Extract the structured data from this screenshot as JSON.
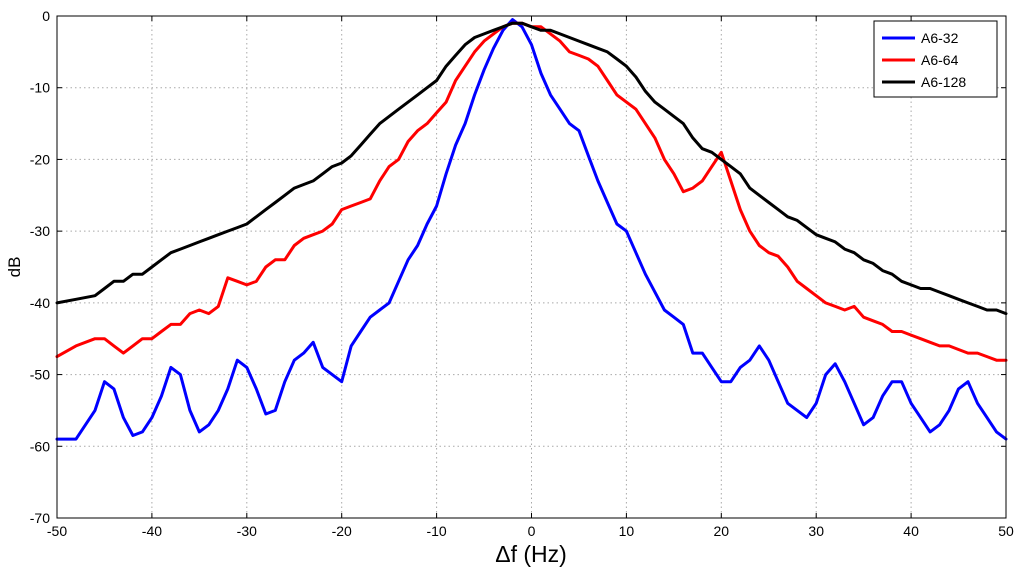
{
  "chart_data": {
    "type": "line",
    "xlabel": "Δf (Hz)",
    "ylabel": "dB",
    "xlim": [
      -50,
      50
    ],
    "ylim": [
      -70,
      0
    ],
    "xticks": [
      -50,
      -40,
      -30,
      -20,
      -10,
      0,
      10,
      20,
      30,
      40,
      50
    ],
    "yticks": [
      0,
      -10,
      -20,
      -30,
      -40,
      -50,
      -60,
      -70
    ],
    "grid": true,
    "legend_position": "top-right",
    "series": [
      {
        "name": "A6-32",
        "color": "#0000ff",
        "x": [
          -50,
          -48,
          -46,
          -45,
          -44,
          -43,
          -42,
          -41,
          -40,
          -39,
          -38,
          -37,
          -36,
          -35,
          -34,
          -33,
          -32,
          -31,
          -30,
          -29,
          -28,
          -27,
          -26,
          -25,
          -24,
          -23,
          -22,
          -21,
          -20,
          -19,
          -18,
          -17,
          -16,
          -15,
          -14,
          -13,
          -12,
          -11,
          -10,
          -9,
          -8,
          -7,
          -6,
          -5,
          -4,
          -3,
          -2,
          -1,
          0,
          1,
          2,
          3,
          4,
          5,
          6,
          7,
          8,
          9,
          10,
          11,
          12,
          13,
          14,
          15,
          16,
          17,
          18,
          19,
          20,
          21,
          22,
          23,
          24,
          25,
          26,
          27,
          28,
          29,
          30,
          31,
          32,
          33,
          34,
          35,
          36,
          37,
          38,
          39,
          40,
          41,
          42,
          43,
          44,
          45,
          46,
          47,
          48,
          49,
          50
        ],
        "y": [
          -59,
          -59,
          -55,
          -51,
          -52,
          -56,
          -58.5,
          -58,
          -56,
          -53,
          -49,
          -50,
          -55,
          -58,
          -57,
          -55,
          -52,
          -48,
          -49,
          -52,
          -55.5,
          -55,
          -51,
          -48,
          -47,
          -45.5,
          -49,
          -50,
          -51,
          -46,
          -44,
          -42,
          -41,
          -40,
          -37,
          -34,
          -32,
          -29,
          -26.5,
          -22,
          -18,
          -15,
          -11,
          -7.5,
          -4.5,
          -2,
          -0.5,
          -1.5,
          -4,
          -8,
          -11,
          -13,
          -15,
          -16,
          -19.5,
          -23,
          -26,
          -29,
          -30,
          -33,
          -36,
          -38.5,
          -41,
          -42,
          -43,
          -47,
          -47,
          -49,
          -51,
          -51,
          -49,
          -48,
          -46,
          -48,
          -51,
          -54,
          -55,
          -56,
          -54,
          -50,
          -48.5,
          -51,
          -54,
          -57,
          -56,
          -53,
          -51,
          -51,
          -54,
          -56,
          -58,
          -57,
          -55,
          -52,
          -51,
          -54,
          -56,
          -58,
          -59
        ]
      },
      {
        "name": "A6-64",
        "color": "#ff0000",
        "x": [
          -50,
          -48,
          -46,
          -45,
          -44,
          -43,
          -42,
          -41,
          -40,
          -39,
          -38,
          -37,
          -36,
          -35,
          -34,
          -33,
          -32,
          -31,
          -30,
          -29,
          -28,
          -27,
          -26,
          -25,
          -24,
          -23,
          -22,
          -21,
          -20,
          -19,
          -18,
          -17,
          -16,
          -15,
          -14,
          -13,
          -12,
          -11,
          -10,
          -9,
          -8,
          -7,
          -6,
          -5,
          -4,
          -3,
          -2,
          -1,
          0,
          1,
          2,
          3,
          4,
          5,
          6,
          7,
          8,
          9,
          10,
          11,
          12,
          13,
          14,
          15,
          16,
          17,
          18,
          19,
          20,
          21,
          22,
          23,
          24,
          25,
          26,
          27,
          28,
          29,
          30,
          31,
          32,
          33,
          34,
          35,
          36,
          37,
          38,
          39,
          40,
          41,
          42,
          43,
          44,
          45,
          46,
          47,
          48,
          49,
          50
        ],
        "y": [
          -47.5,
          -46,
          -45,
          -45,
          -46,
          -47,
          -46,
          -45,
          -45,
          -44,
          -43,
          -43,
          -41.5,
          -41,
          -41.5,
          -40.5,
          -36.5,
          -37,
          -37.5,
          -37,
          -35,
          -34,
          -34,
          -32,
          -31,
          -30.5,
          -30,
          -29,
          -27,
          -26.5,
          -26,
          -25.5,
          -23,
          -21,
          -20,
          -17.5,
          -16,
          -15,
          -13.5,
          -12,
          -9,
          -7,
          -5,
          -3.5,
          -2.5,
          -1.5,
          -1,
          -1,
          -1.5,
          -1.5,
          -2.5,
          -3.5,
          -5,
          -5.5,
          -6,
          -7,
          -9,
          -11,
          -12,
          -13,
          -15,
          -17,
          -20,
          -22,
          -24.5,
          -24,
          -23,
          -21,
          -19,
          -23,
          -27,
          -30,
          -32,
          -33,
          -33.5,
          -35,
          -37,
          -38,
          -39,
          -40,
          -40.5,
          -41,
          -40.5,
          -42,
          -42.5,
          -43,
          -44,
          -44,
          -44.5,
          -45,
          -45.5,
          -46,
          -46,
          -46.5,
          -47,
          -47,
          -47.5,
          -48,
          -48
        ]
      },
      {
        "name": "A6-128",
        "color": "#000000",
        "x": [
          -50,
          -48,
          -46,
          -45,
          -44,
          -43,
          -42,
          -41,
          -40,
          -39,
          -38,
          -37,
          -36,
          -35,
          -34,
          -33,
          -32,
          -31,
          -30,
          -29,
          -28,
          -27,
          -26,
          -25,
          -24,
          -23,
          -22,
          -21,
          -20,
          -19,
          -18,
          -17,
          -16,
          -15,
          -14,
          -13,
          -12,
          -11,
          -10,
          -9,
          -8,
          -7,
          -6,
          -5,
          -4,
          -3,
          -2,
          -1,
          0,
          1,
          2,
          3,
          4,
          5,
          6,
          7,
          8,
          9,
          10,
          11,
          12,
          13,
          14,
          15,
          16,
          17,
          18,
          19,
          20,
          21,
          22,
          23,
          24,
          25,
          26,
          27,
          28,
          29,
          30,
          31,
          32,
          33,
          34,
          35,
          36,
          37,
          38,
          39,
          40,
          41,
          42,
          43,
          44,
          45,
          46,
          47,
          48,
          49,
          50
        ],
        "y": [
          -40,
          -39.5,
          -39,
          -38,
          -37,
          -37,
          -36,
          -36,
          -35,
          -34,
          -33,
          -32.5,
          -32,
          -31.5,
          -31,
          -30.5,
          -30,
          -29.5,
          -29,
          -28,
          -27,
          -26,
          -25,
          -24,
          -23.5,
          -23,
          -22,
          -21,
          -20.5,
          -19.5,
          -18,
          -16.5,
          -15,
          -14,
          -13,
          -12,
          -11,
          -10,
          -9,
          -7,
          -5.5,
          -4,
          -3,
          -2.5,
          -2,
          -1.5,
          -1,
          -1,
          -1.5,
          -2,
          -2,
          -2.5,
          -3,
          -3.5,
          -4,
          -4.5,
          -5,
          -6,
          -7,
          -8.5,
          -10.5,
          -12,
          -13,
          -14,
          -15,
          -17,
          -18.5,
          -19,
          -20,
          -21,
          -22,
          -24,
          -25,
          -26,
          -27,
          -28,
          -28.5,
          -29.5,
          -30.5,
          -31,
          -31.5,
          -32.5,
          -33,
          -34,
          -34.5,
          -35.5,
          -36,
          -37,
          -37.5,
          -38,
          -38,
          -38.5,
          -39,
          -39.5,
          -40,
          -40.5,
          -41,
          -41,
          -41.5
        ]
      }
    ]
  }
}
